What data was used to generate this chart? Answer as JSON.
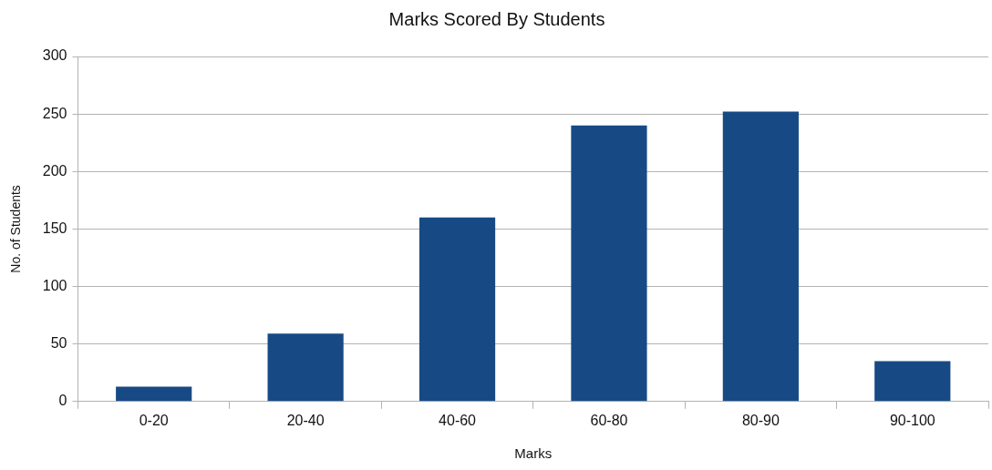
{
  "chart_data": {
    "type": "bar",
    "title": "Marks Scored By Students",
    "xlabel": "Marks",
    "ylabel": "No. of Students",
    "categories": [
      "0-20",
      "20-40",
      "40-60",
      "60-80",
      "80-90",
      "90-100"
    ],
    "values": [
      13,
      59,
      160,
      240,
      252,
      35
    ],
    "color": "#174a85",
    "ylim": [
      0,
      300
    ],
    "yticks": [
      0,
      50,
      100,
      150,
      200,
      250,
      300
    ],
    "grid": "y"
  }
}
